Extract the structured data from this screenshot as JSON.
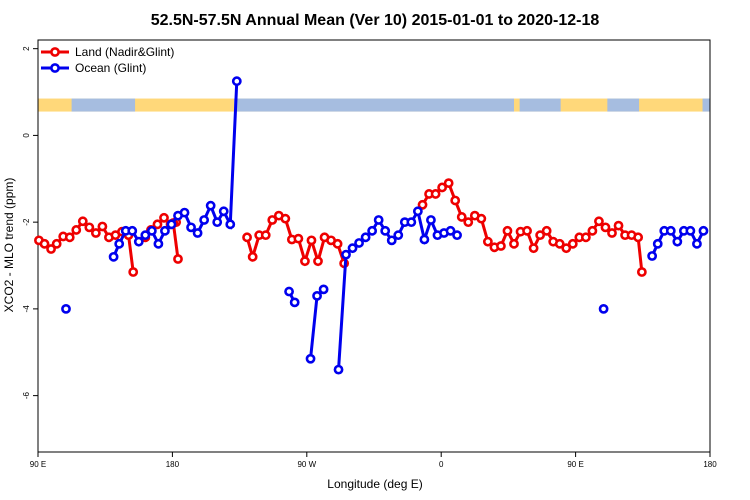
{
  "chart_data": {
    "type": "line",
    "title": "52.5N-57.5N Annual Mean (Ver 10)   2015-01-01 to 2020-12-18",
    "xlabel": "Longitude (deg E)",
    "ylabel": "XCO2 - MLO trend (ppm)",
    "xlim": [
      90,
      450
    ],
    "ylim": [
      -7.3,
      2.2
    ],
    "xticks": [
      {
        "value": 90,
        "label": "90 E"
      },
      {
        "value": 180,
        "label": "180"
      },
      {
        "value": 270,
        "label": "90 W"
      },
      {
        "value": 360,
        "label": "0"
      },
      {
        "value": 450,
        "label": "90 E"
      },
      {
        "value": 540,
        "label": "180"
      }
    ],
    "xticks_visible": [
      {
        "value": 90,
        "label": "90 E"
      },
      {
        "value": 162,
        "label": "180"
      },
      {
        "value": 234,
        "label": "90 W"
      },
      {
        "value": 306,
        "label": "0"
      },
      {
        "value": 378,
        "label": "90 E"
      },
      {
        "value": 450,
        "label": "180"
      }
    ],
    "yticks": [
      {
        "value": 2,
        "label": "2"
      },
      {
        "value": 0,
        "label": "0"
      },
      {
        "value": -2,
        "label": "-2"
      },
      {
        "value": -4,
        "label": "-4"
      },
      {
        "value": -6,
        "label": "-6"
      }
    ],
    "legend": {
      "placement": "top-left",
      "entries": [
        {
          "label": "Land (Nadir&Glint)",
          "color": "#ee0000"
        },
        {
          "label": "Ocean (Glint)",
          "color": "#0000ee"
        }
      ]
    },
    "land_band": {
      "y_top": 0.85,
      "y_bottom": 0.55,
      "land_color": "#ffd87a",
      "ocean_color": "#a6bde0"
    },
    "series": [
      {
        "name": "Land (Nadir&Glint)",
        "color": "#ee0000",
        "segments": [
          [
            [
              90.5,
              -2.42
            ],
            [
              93.5,
              -2.5
            ],
            [
              97,
              -2.62
            ],
            [
              100,
              -2.5
            ],
            [
              103.5,
              -2.33
            ],
            [
              107,
              -2.35
            ],
            [
              110.5,
              -2.18
            ],
            [
              114,
              -1.98
            ],
            [
              117.5,
              -2.12
            ],
            [
              121,
              -2.25
            ],
            [
              124.5,
              -2.1
            ],
            [
              128,
              -2.35
            ],
            [
              131.5,
              -2.3
            ],
            [
              135,
              -2.22
            ],
            [
              138.5,
              -2.3
            ],
            [
              141,
              -3.15
            ]
          ],
          [
            [
              147.5,
              -2.35
            ],
            [
              150.5,
              -2.18
            ],
            [
              154,
              -2.05
            ],
            [
              157.5,
              -1.9
            ],
            [
              161,
              -2.05
            ],
            [
              164,
              -2.0
            ]
          ],
          [
            [
              162.5,
              -2.02
            ],
            [
              165,
              -2.85
            ]
          ],
          [
            [
              202,
              -2.35
            ],
            [
              205,
              -2.8
            ],
            [
              208.5,
              -2.3
            ],
            [
              212,
              -2.3
            ],
            [
              215.5,
              -1.95
            ],
            [
              219,
              -1.85
            ],
            [
              222.5,
              -1.92
            ],
            [
              226,
              -2.4
            ],
            [
              229.5,
              -2.38
            ],
            [
              233,
              -2.9
            ],
            [
              236.5,
              -2.42
            ],
            [
              240,
              -2.9
            ],
            [
              243.5,
              -2.35
            ],
            [
              247,
              -2.42
            ],
            [
              250.5,
              -2.5
            ],
            [
              254,
              -2.95
            ]
          ],
          [
            [
              296,
              -1.6
            ],
            [
              299.5,
              -1.35
            ],
            [
              303,
              -1.35
            ],
            [
              306.5,
              -1.2
            ],
            [
              310,
              -1.1
            ],
            [
              313.5,
              -1.5
            ],
            [
              317,
              -1.88
            ],
            [
              320.5,
              -2.0
            ],
            [
              324,
              -1.85
            ],
            [
              327.5,
              -1.92
            ],
            [
              331,
              -2.45
            ],
            [
              334.5,
              -2.58
            ],
            [
              338,
              -2.55
            ],
            [
              341.5,
              -2.2
            ],
            [
              345,
              -2.5
            ],
            [
              348.5,
              -2.22
            ],
            [
              352,
              -2.2
            ],
            [
              355.5,
              -2.6
            ],
            [
              359,
              -2.3
            ],
            [
              362.5,
              -2.2
            ],
            [
              366,
              -2.45
            ],
            [
              369.5,
              -2.5
            ],
            [
              373,
              -2.6
            ],
            [
              376.5,
              -2.5
            ],
            [
              380,
              -2.35
            ],
            [
              383.5,
              -2.35
            ],
            [
              387,
              -2.2
            ],
            [
              390.5,
              -1.98
            ],
            [
              394,
              -2.12
            ],
            [
              397.5,
              -2.25
            ],
            [
              401,
              -2.08
            ],
            [
              404.5,
              -2.3
            ],
            [
              408,
              -2.3
            ],
            [
              411.5,
              -2.35
            ],
            [
              413.5,
              -3.15
            ]
          ]
        ]
      },
      {
        "name": "Ocean (Glint)",
        "color": "#0000ee",
        "segments": [
          [
            [
              105,
              -4.0
            ]
          ],
          [
            [
              130.5,
              -2.8
            ],
            [
              133.5,
              -2.5
            ],
            [
              137,
              -2.2
            ],
            [
              140.5,
              -2.2
            ],
            [
              144,
              -2.45
            ],
            [
              147.5,
              -2.3
            ],
            [
              151,
              -2.2
            ],
            [
              154.5,
              -2.5
            ],
            [
              158,
              -2.2
            ],
            [
              161.5,
              -2.05
            ],
            [
              165,
              -1.85
            ],
            [
              168.5,
              -1.78
            ],
            [
              172,
              -2.12
            ],
            [
              175.5,
              -2.25
            ],
            [
              179,
              -1.95
            ],
            [
              182.5,
              -1.62
            ],
            [
              186,
              -2.0
            ],
            [
              189.5,
              -1.75
            ],
            [
              193,
              -2.05
            ],
            [
              196.5,
              1.25
            ]
          ],
          [
            [
              224.5,
              -3.6
            ],
            [
              227.5,
              -3.85
            ]
          ],
          [
            [
              236,
              -5.15
            ],
            [
              239.5,
              -3.7
            ],
            [
              243,
              -3.55
            ]
          ],
          [
            [
              251,
              -5.4
            ],
            [
              255,
              -2.75
            ],
            [
              258.5,
              -2.6
            ],
            [
              262,
              -2.48
            ],
            [
              265.5,
              -2.35
            ],
            [
              269,
              -2.2
            ],
            [
              272.5,
              -1.95
            ],
            [
              276,
              -2.2
            ],
            [
              279.5,
              -2.42
            ],
            [
              283,
              -2.3
            ],
            [
              286.5,
              -2.0
            ],
            [
              290,
              -2.0
            ],
            [
              293.5,
              -1.75
            ],
            [
              297,
              -2.4
            ],
            [
              300.5,
              -1.95
            ],
            [
              304,
              -2.3
            ],
            [
              307.5,
              -2.25
            ],
            [
              311,
              -2.2
            ],
            [
              314.5,
              -2.3
            ]
          ],
          [
            [
              393,
              -4.0
            ]
          ],
          [
            [
              419,
              -2.78
            ],
            [
              422,
              -2.5
            ],
            [
              425.5,
              -2.2
            ],
            [
              429,
              -2.2
            ],
            [
              432.5,
              -2.45
            ],
            [
              436,
              -2.2
            ],
            [
              439.5,
              -2.2
            ],
            [
              443,
              -2.5
            ],
            [
              446.5,
              -2.2
            ]
          ]
        ]
      }
    ]
  }
}
